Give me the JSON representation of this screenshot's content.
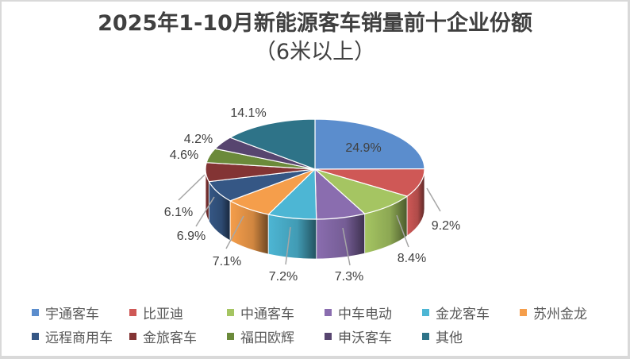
{
  "title": {
    "line1": "2025年1-10月新能源客车销量前十企业份额",
    "line2": "（6米以上）"
  },
  "chart_data": {
    "type": "pie",
    "style": "3d-exploded-none",
    "title": "2025年1-10月新能源客车销量前十企业份额（6米以上）",
    "categories": [
      "宇通客车",
      "比亚迪",
      "中通客车",
      "中车电动",
      "金龙客车",
      "苏州金龙",
      "远程商用车",
      "金旅客车",
      "福田欧辉",
      "申沃客车",
      "其他"
    ],
    "values": [
      24.9,
      9.2,
      8.4,
      7.3,
      7.2,
      7.1,
      6.9,
      6.1,
      4.6,
      4.2,
      14.1
    ],
    "labels": [
      "24.9%",
      "9.2%",
      "8.4%",
      "7.3%",
      "7.2%",
      "7.1%",
      "6.9%",
      "6.1%",
      "4.6%",
      "4.2%",
      "14.1%"
    ],
    "colors": [
      "#5b8dcd",
      "#cf5856",
      "#a5c562",
      "#8a6daf",
      "#4db6d4",
      "#f59e4b",
      "#355785",
      "#833434",
      "#6b8a3a",
      "#57456f",
      "#2e7388"
    ],
    "legend_position": "bottom",
    "unit": "%"
  },
  "legend": {
    "rows": [
      [
        0,
        1,
        2,
        3,
        4,
        5
      ],
      [
        6,
        7,
        8,
        9,
        10
      ]
    ]
  }
}
